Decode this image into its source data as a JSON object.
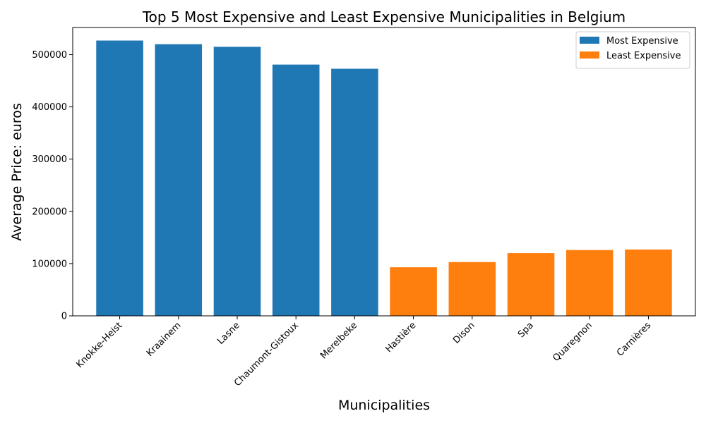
{
  "chart_data": {
    "type": "bar",
    "title": "Top 5 Most Expensive and Least Expensive Municipalities in Belgium",
    "xlabel": "Municipalities",
    "ylabel": "Average Price: euros",
    "ylim": [
      0,
      552000
    ],
    "yticks": [
      0,
      100000,
      200000,
      300000,
      400000,
      500000
    ],
    "grid": false,
    "legend_position": "top-right",
    "series": [
      {
        "name": "Most Expensive",
        "color": "#1f77b4",
        "categories": [
          "Knokke-Heist",
          "Kraainem",
          "Lasne",
          "Chaumont-Gistoux",
          "Merelbeke"
        ],
        "values": [
          527000,
          520000,
          515000,
          481000,
          473000
        ]
      },
      {
        "name": "Least Expensive",
        "color": "#ff7f0e",
        "categories": [
          "Hastière",
          "Dison",
          "Spa",
          "Quaregnon",
          "Carnières"
        ],
        "values": [
          93000,
          103000,
          120000,
          126000,
          127000
        ]
      }
    ]
  }
}
